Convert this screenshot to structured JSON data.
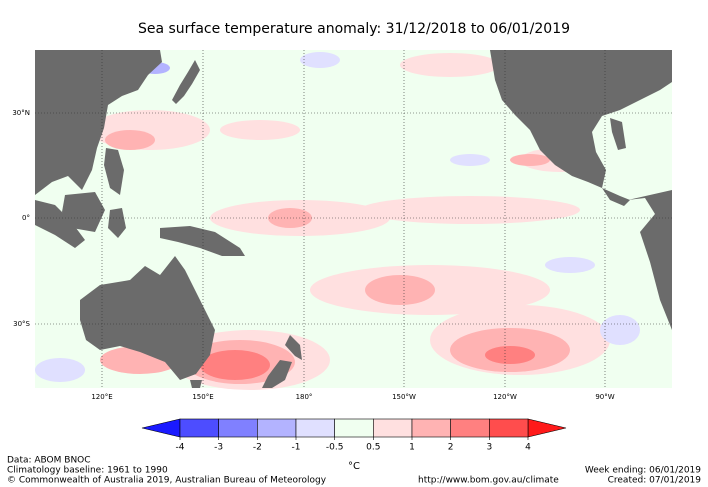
{
  "title": "Sea surface temperature anomaly: 31/12/2018 to 06/01/2019",
  "map": {
    "lon_labels": [
      "120°E",
      "150°E",
      "180°",
      "150°W",
      "120°W",
      "90°W"
    ],
    "lat_labels": [
      "30°N",
      "0°",
      "30°S"
    ]
  },
  "colorbar": {
    "ticks": [
      -4,
      -3,
      -2,
      -1,
      -0.5,
      0.5,
      1,
      2,
      3,
      4
    ],
    "colors": [
      "#1a1aff",
      "#4d4dff",
      "#8080ff",
      "#b3b3ff",
      "#e0e0ff",
      "#f0fff0",
      "#ffe0e0",
      "#ffb3b3",
      "#ff8080",
      "#ff4d4d",
      "#ff1a1a"
    ],
    "unit": "°C"
  },
  "footer": {
    "data": "Data: ABOM BNOC",
    "baseline": "Climatology baseline: 1961 to 1990",
    "copyright": "© Commonwealth of Australia 2019, Australian Bureau of Meteorology",
    "url": "http://www.bom.gov.au/climate",
    "week": "Week ending: 06/01/2019",
    "created": "Created: 07/01/2019"
  }
}
